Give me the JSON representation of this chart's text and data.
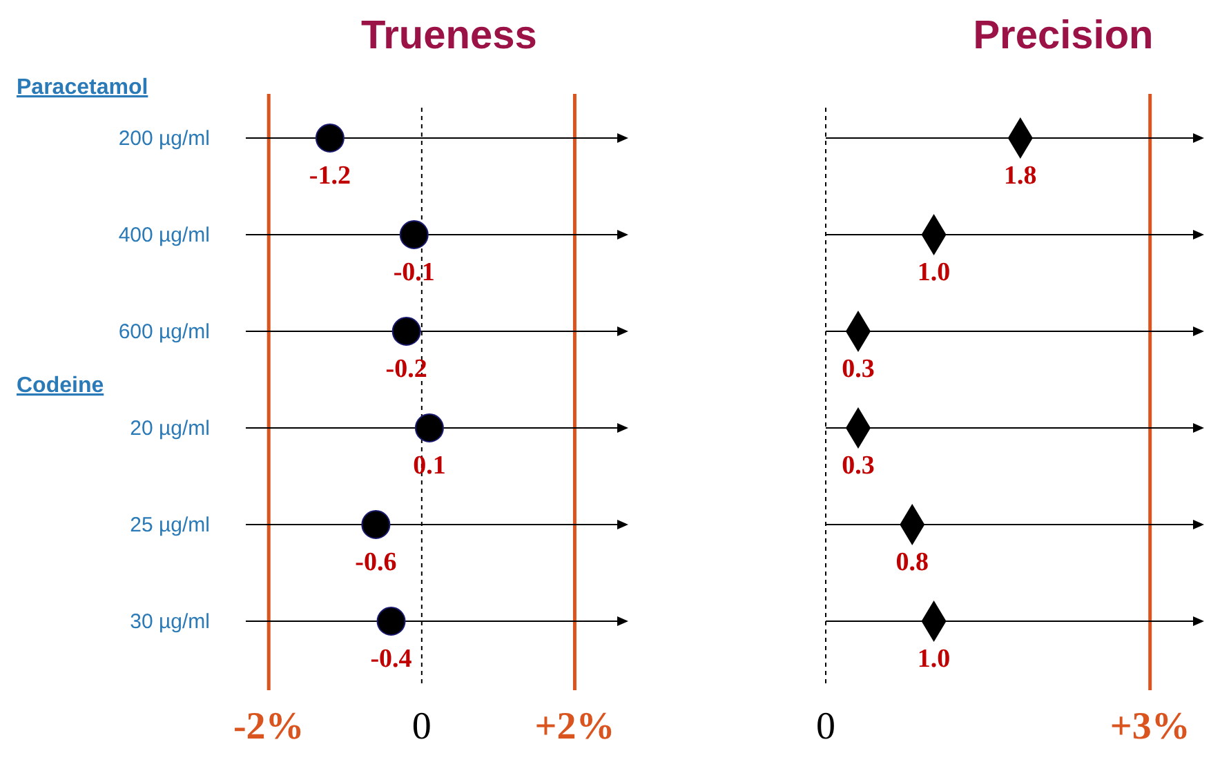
{
  "chart_data": [
    {
      "type": "scatter",
      "orientation": "horizontal",
      "title": "Trueness",
      "categories": [
        "200 µg/ml",
        "400 µg/ml",
        "600 µg/ml",
        "20 µg/ml",
        "25 µg/ml",
        "30 µg/ml"
      ],
      "series": [
        {
          "color": "#000000",
          "values": [
            -1.2,
            -0.1,
            -0.2,
            0.1,
            -0.6,
            -0.4
          ],
          "value_labels": [
            "-1.2",
            "-0.1",
            "-0.2",
            "0.1",
            "-0.6",
            "-0.4"
          ]
        }
      ],
      "marker": "circle",
      "grid": "y",
      "xlim": [
        -2.3,
        2.7
      ],
      "xticks": [
        {
          "value": -2,
          "label": "-2%"
        },
        0,
        {
          "value": 2,
          "label": "+2%"
        }
      ],
      "ref_lines": [
        {
          "axis": "x",
          "value": -2,
          "color": "#d9541e",
          "line_style": "solid"
        },
        {
          "axis": "x",
          "value": 2,
          "color": "#d9541e",
          "line_style": "solid"
        },
        {
          "axis": "x",
          "value": 0,
          "color": "#000000",
          "line_style": "dashed"
        }
      ],
      "annotations": [
        "Paracetamol",
        "Codeine"
      ]
    },
    {
      "type": "scatter",
      "orientation": "horizontal",
      "title": "Precision",
      "categories": [
        null,
        null,
        null,
        null,
        null,
        null
      ],
      "series": [
        {
          "color": "#000000",
          "values": [
            1.8,
            1.0,
            0.3,
            0.3,
            0.8,
            1.0
          ],
          "value_labels": [
            "1.8",
            "1.0",
            "0.3",
            "0.3",
            "0.8",
            "1.0"
          ]
        }
      ],
      "marker": "diamond",
      "grid": "y",
      "xlim": [
        0,
        3.5
      ],
      "xticks": [
        0,
        {
          "value": 3,
          "label": "+3%"
        }
      ],
      "ref_lines": [
        {
          "axis": "x",
          "value": 3,
          "color": "#d9541e",
          "line_style": "solid"
        },
        {
          "axis": "x",
          "value": 0,
          "color": "#000000",
          "line_style": "dashed"
        }
      ]
    }
  ]
}
